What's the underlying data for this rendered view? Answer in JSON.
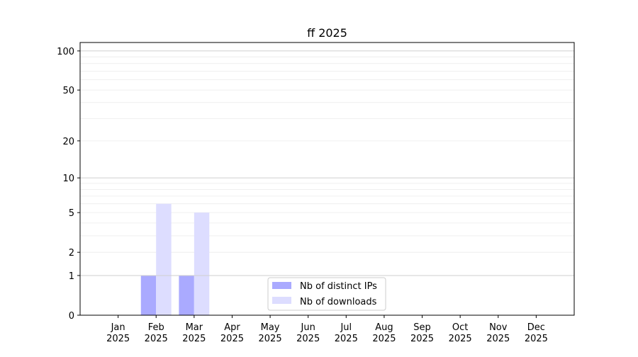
{
  "chart_data": {
    "type": "bar",
    "title": "ff 2025",
    "xlabel": "",
    "ylabel": "",
    "categories": [
      "Jan\n2025",
      "Feb\n2025",
      "Mar\n2025",
      "Apr\n2025",
      "May\n2025",
      "Jun\n2025",
      "Jul\n2025",
      "Aug\n2025",
      "Sep\n2025",
      "Oct\n2025",
      "Nov\n2025",
      "Dec\n2025"
    ],
    "series": [
      {
        "name": "Nb of distinct IPs",
        "color": "#aaaaff",
        "values": [
          0,
          1,
          1,
          0,
          0,
          0,
          0,
          0,
          0,
          0,
          0,
          0
        ]
      },
      {
        "name": "Nb of downloads",
        "color": "#ddddff",
        "values": [
          0,
          6,
          5,
          0,
          0,
          0,
          0,
          0,
          0,
          0,
          0,
          0
        ]
      }
    ],
    "yscale": "symlog",
    "yticks": [
      0,
      1,
      2,
      5,
      10,
      20,
      50,
      100
    ],
    "ylim": [
      0,
      116
    ],
    "grid": true,
    "legend_position": "lower-center"
  }
}
